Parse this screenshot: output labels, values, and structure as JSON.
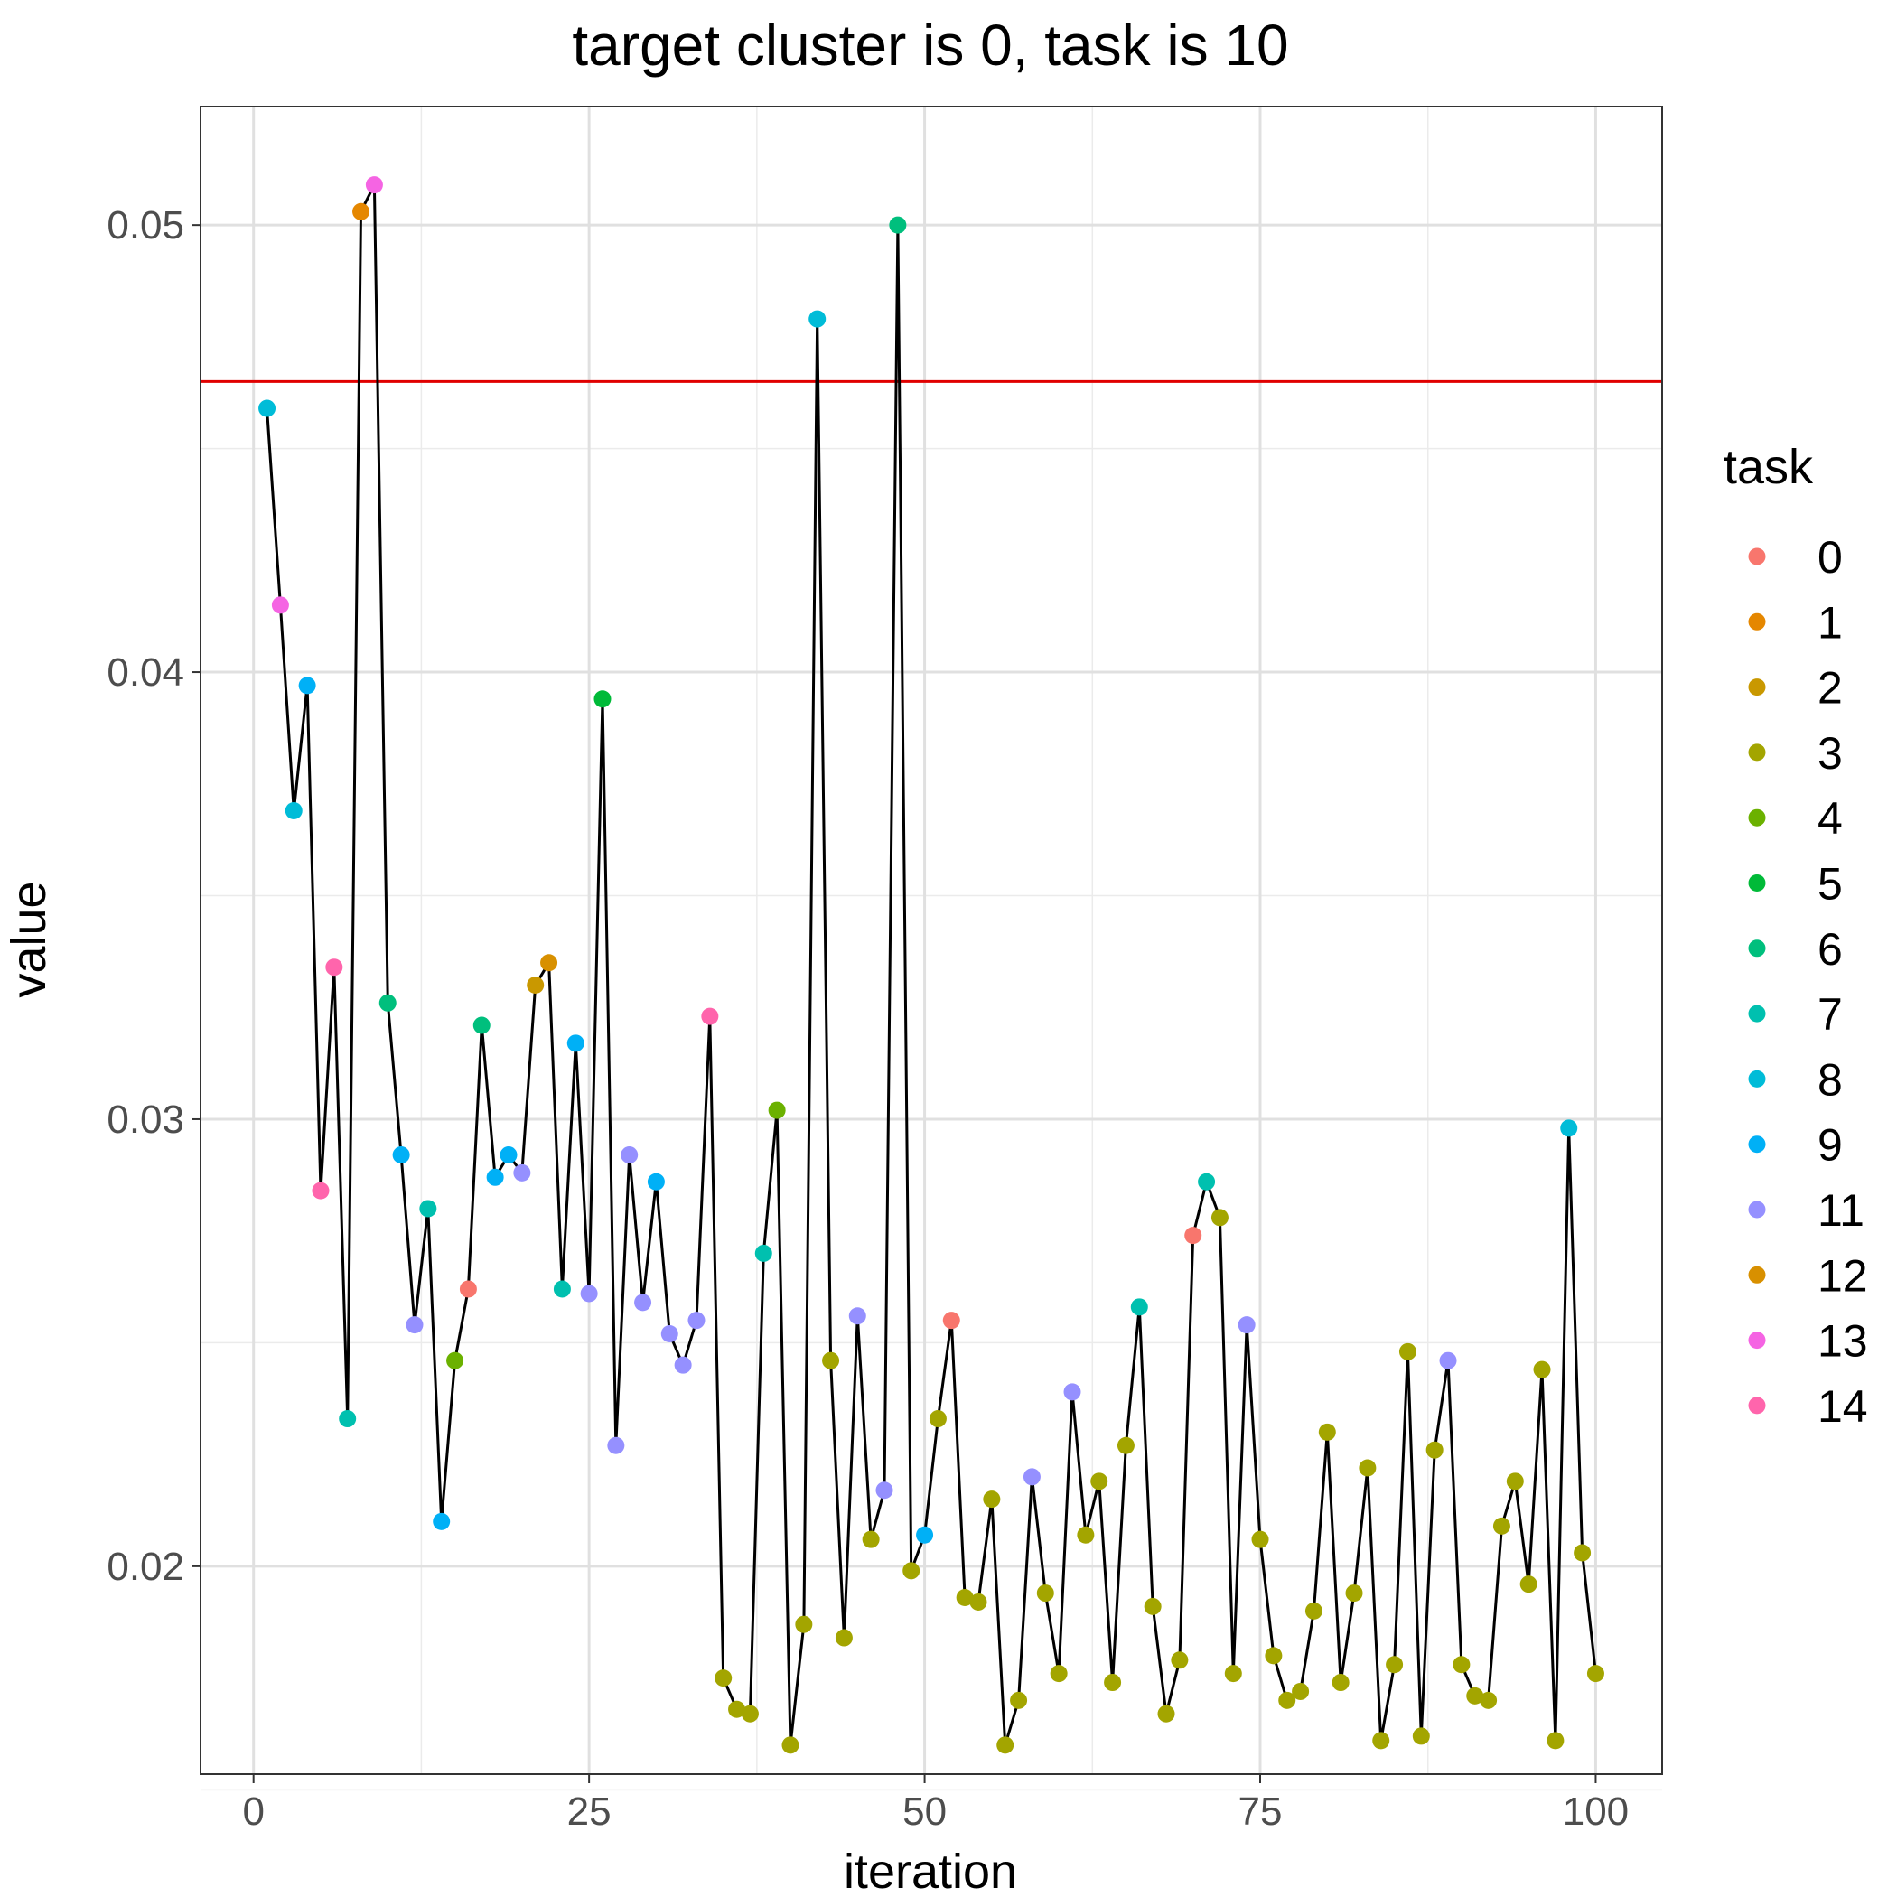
{
  "chart_data": {
    "type": "scatter",
    "title": "target cluster is 0, task is 10",
    "xlabel": "iteration",
    "ylabel": "value",
    "xlim": [
      -3.95,
      104.95
    ],
    "ylim": [
      0.01535,
      0.05265
    ],
    "x_ticks": [
      0,
      25,
      50,
      75,
      100
    ],
    "x_tick_labels": [
      "0",
      "25",
      "50",
      "75",
      "100"
    ],
    "y_ticks": [
      0.02,
      0.03,
      0.04,
      0.05
    ],
    "y_tick_labels": [
      "0.02",
      "0.03",
      "0.04",
      "0.05"
    ],
    "x_minor": [
      12.5,
      37.5,
      62.5,
      87.5
    ],
    "y_minor": [
      0.015,
      0.025,
      0.035,
      0.045
    ],
    "grid": true,
    "hline": {
      "value": 0.0465,
      "color": "#e00000"
    },
    "connect_points": true,
    "legend": {
      "title": "task",
      "position": "right",
      "entries": [
        {
          "label": "0",
          "task": 0,
          "color": "#F8766D"
        },
        {
          "label": "1",
          "task": 1,
          "color": "#E58700"
        },
        {
          "label": "2",
          "task": 2,
          "color": "#C99800"
        },
        {
          "label": "3",
          "task": 3,
          "color": "#A3A500"
        },
        {
          "label": "4",
          "task": 4,
          "color": "#6BB100"
        },
        {
          "label": "5",
          "task": 5,
          "color": "#00BA38"
        },
        {
          "label": "6",
          "task": 6,
          "color": "#00BF7D"
        },
        {
          "label": "7",
          "task": 7,
          "color": "#00C0AF"
        },
        {
          "label": "8",
          "task": 8,
          "color": "#00BCD8"
        },
        {
          "label": "9",
          "task": 9,
          "color": "#00B0F6"
        },
        {
          "label": "11",
          "task": 11,
          "color": "#9590FF"
        },
        {
          "label": "12",
          "task": 12,
          "color": "#D89000"
        },
        {
          "label": "13",
          "task": 13,
          "color": "#F564E3"
        },
        {
          "label": "14",
          "task": 14,
          "color": "#FF65AC"
        }
      ]
    },
    "points": [
      [
        1,
        0.0459,
        8
      ],
      [
        2,
        0.0415,
        13
      ],
      [
        3,
        0.0369,
        8
      ],
      [
        4,
        0.0397,
        9
      ],
      [
        5,
        0.0284,
        14
      ],
      [
        6,
        0.0334,
        14
      ],
      [
        7,
        0.0233,
        7
      ],
      [
        8,
        0.0503,
        1
      ],
      [
        9,
        0.0509,
        13
      ],
      [
        10,
        0.0326,
        6
      ],
      [
        11,
        0.0292,
        9
      ],
      [
        12,
        0.0254,
        11
      ],
      [
        13,
        0.028,
        7
      ],
      [
        14,
        0.021,
        9
      ],
      [
        15,
        0.0246,
        4
      ],
      [
        16,
        0.0262,
        0
      ],
      [
        17,
        0.0321,
        6
      ],
      [
        18,
        0.0287,
        9
      ],
      [
        19,
        0.0292,
        9
      ],
      [
        20,
        0.0288,
        11
      ],
      [
        21,
        0.033,
        2
      ],
      [
        22,
        0.0335,
        12
      ],
      [
        23,
        0.0262,
        7
      ],
      [
        24,
        0.0317,
        9
      ],
      [
        25,
        0.0261,
        11
      ],
      [
        26,
        0.0394,
        5
      ],
      [
        27,
        0.0227,
        11
      ],
      [
        28,
        0.0292,
        11
      ],
      [
        29,
        0.0259,
        11
      ],
      [
        30,
        0.0286,
        9
      ],
      [
        31,
        0.0252,
        11
      ],
      [
        32,
        0.0245,
        11
      ],
      [
        33,
        0.0255,
        11
      ],
      [
        34,
        0.0323,
        14
      ],
      [
        35,
        0.0175,
        3
      ],
      [
        36,
        0.0168,
        3
      ],
      [
        37,
        0.0167,
        3
      ],
      [
        38,
        0.027,
        7
      ],
      [
        39,
        0.0302,
        4
      ],
      [
        40,
        0.016,
        3
      ],
      [
        41,
        0.0187,
        3
      ],
      [
        42,
        0.0479,
        8
      ],
      [
        43,
        0.0246,
        3
      ],
      [
        44,
        0.0184,
        3
      ],
      [
        45,
        0.0256,
        11
      ],
      [
        46,
        0.0206,
        3
      ],
      [
        47,
        0.0217,
        11
      ],
      [
        48,
        0.05,
        6
      ],
      [
        49,
        0.0199,
        3
      ],
      [
        50,
        0.0207,
        9
      ],
      [
        51,
        0.0233,
        3
      ],
      [
        52,
        0.0255,
        0
      ],
      [
        53,
        0.0193,
        3
      ],
      [
        54,
        0.0192,
        3
      ],
      [
        55,
        0.0215,
        3
      ],
      [
        56,
        0.016,
        3
      ],
      [
        57,
        0.017,
        3
      ],
      [
        58,
        0.022,
        11
      ],
      [
        59,
        0.0194,
        3
      ],
      [
        60,
        0.0176,
        3
      ],
      [
        61,
        0.0239,
        11
      ],
      [
        62,
        0.0207,
        3
      ],
      [
        63,
        0.0219,
        3
      ],
      [
        64,
        0.0174,
        3
      ],
      [
        65,
        0.0227,
        3
      ],
      [
        66,
        0.0258,
        7
      ],
      [
        67,
        0.0191,
        3
      ],
      [
        68,
        0.0167,
        3
      ],
      [
        69,
        0.0179,
        3
      ],
      [
        70,
        0.0274,
        0
      ],
      [
        71,
        0.0286,
        7
      ],
      [
        72,
        0.0278,
        3
      ],
      [
        73,
        0.0176,
        3
      ],
      [
        74,
        0.0254,
        11
      ],
      [
        75,
        0.0206,
        3
      ],
      [
        76,
        0.018,
        3
      ],
      [
        77,
        0.017,
        3
      ],
      [
        78,
        0.0172,
        3
      ],
      [
        79,
        0.019,
        3
      ],
      [
        80,
        0.023,
        3
      ],
      [
        81,
        0.0174,
        3
      ],
      [
        82,
        0.0194,
        3
      ],
      [
        83,
        0.0222,
        3
      ],
      [
        84,
        0.0161,
        3
      ],
      [
        85,
        0.0178,
        3
      ],
      [
        86,
        0.0248,
        3
      ],
      [
        87,
        0.0162,
        3
      ],
      [
        88,
        0.0226,
        3
      ],
      [
        89,
        0.0246,
        11
      ],
      [
        90,
        0.0178,
        3
      ],
      [
        91,
        0.0171,
        3
      ],
      [
        92,
        0.017,
        3
      ],
      [
        93,
        0.0209,
        3
      ],
      [
        94,
        0.0219,
        3
      ],
      [
        95,
        0.0196,
        3
      ],
      [
        96,
        0.0244,
        3
      ],
      [
        97,
        0.0161,
        3
      ],
      [
        98,
        0.0298,
        8
      ],
      [
        99,
        0.0203,
        3
      ],
      [
        100,
        0.0176,
        3
      ]
    ]
  }
}
